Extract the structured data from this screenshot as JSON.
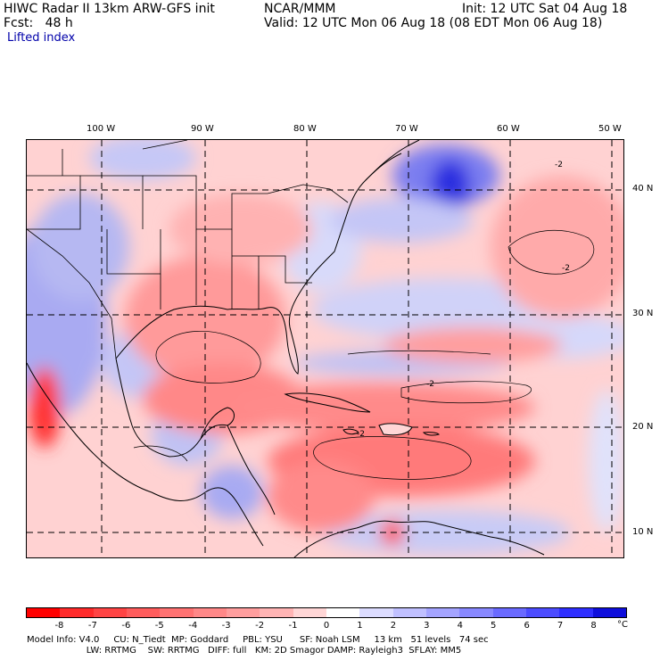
{
  "header": {
    "line1_left": "HIWC Radar II 13km ARW-GFS init",
    "line1_center": "NCAR/MMM",
    "line1_right": "Init: 12 UTC Sat 04 Aug 18",
    "line2_left": "Fcst:   48 h",
    "line2_right": "Valid: 12 UTC Mon 06 Aug 18 (08 EDT Mon 06 Aug 18)",
    "field_name": "Lifted index"
  },
  "map": {
    "lon_labels": [
      "100 W",
      "90 W",
      "80 W",
      "70 W",
      "60 W",
      "50 W"
    ],
    "lat_labels": [
      "40 N",
      "30 N",
      "20 N",
      "10 N"
    ],
    "contour_labels": [
      "-2",
      "-2",
      "-2",
      "-2"
    ]
  },
  "colorbar": {
    "ticks": [
      "-8",
      "-7",
      "-6",
      "-5",
      "-4",
      "-3",
      "-2",
      "-1",
      "0",
      "1",
      "2",
      "3",
      "4",
      "5",
      "6",
      "7",
      "8"
    ],
    "unit": "°C",
    "colors": [
      "#ff0000",
      "#ff2a2a",
      "#ff4444",
      "#ff5c5c",
      "#ff7272",
      "#ff8888",
      "#ff9e9e",
      "#ffb4b4",
      "#ffd6d6",
      "#ffffff",
      "#dcdcff",
      "#c0c0ff",
      "#a4a4ff",
      "#8888ff",
      "#6a6aff",
      "#4c4cff",
      "#2e2eff",
      "#0e0edc"
    ]
  },
  "footer": {
    "line1": "Model Info: V4.0     CU: N_Tiedt  MP: Goddard     PBL: YSU      SF: Noah LSM     13 km   51 levels   74 sec",
    "line2": "                     LW: RRTMG    SW: RRTMG   DIFF: full   KM: 2D Smagor DAMP: Rayleigh3  SFLAY: MM5"
  }
}
